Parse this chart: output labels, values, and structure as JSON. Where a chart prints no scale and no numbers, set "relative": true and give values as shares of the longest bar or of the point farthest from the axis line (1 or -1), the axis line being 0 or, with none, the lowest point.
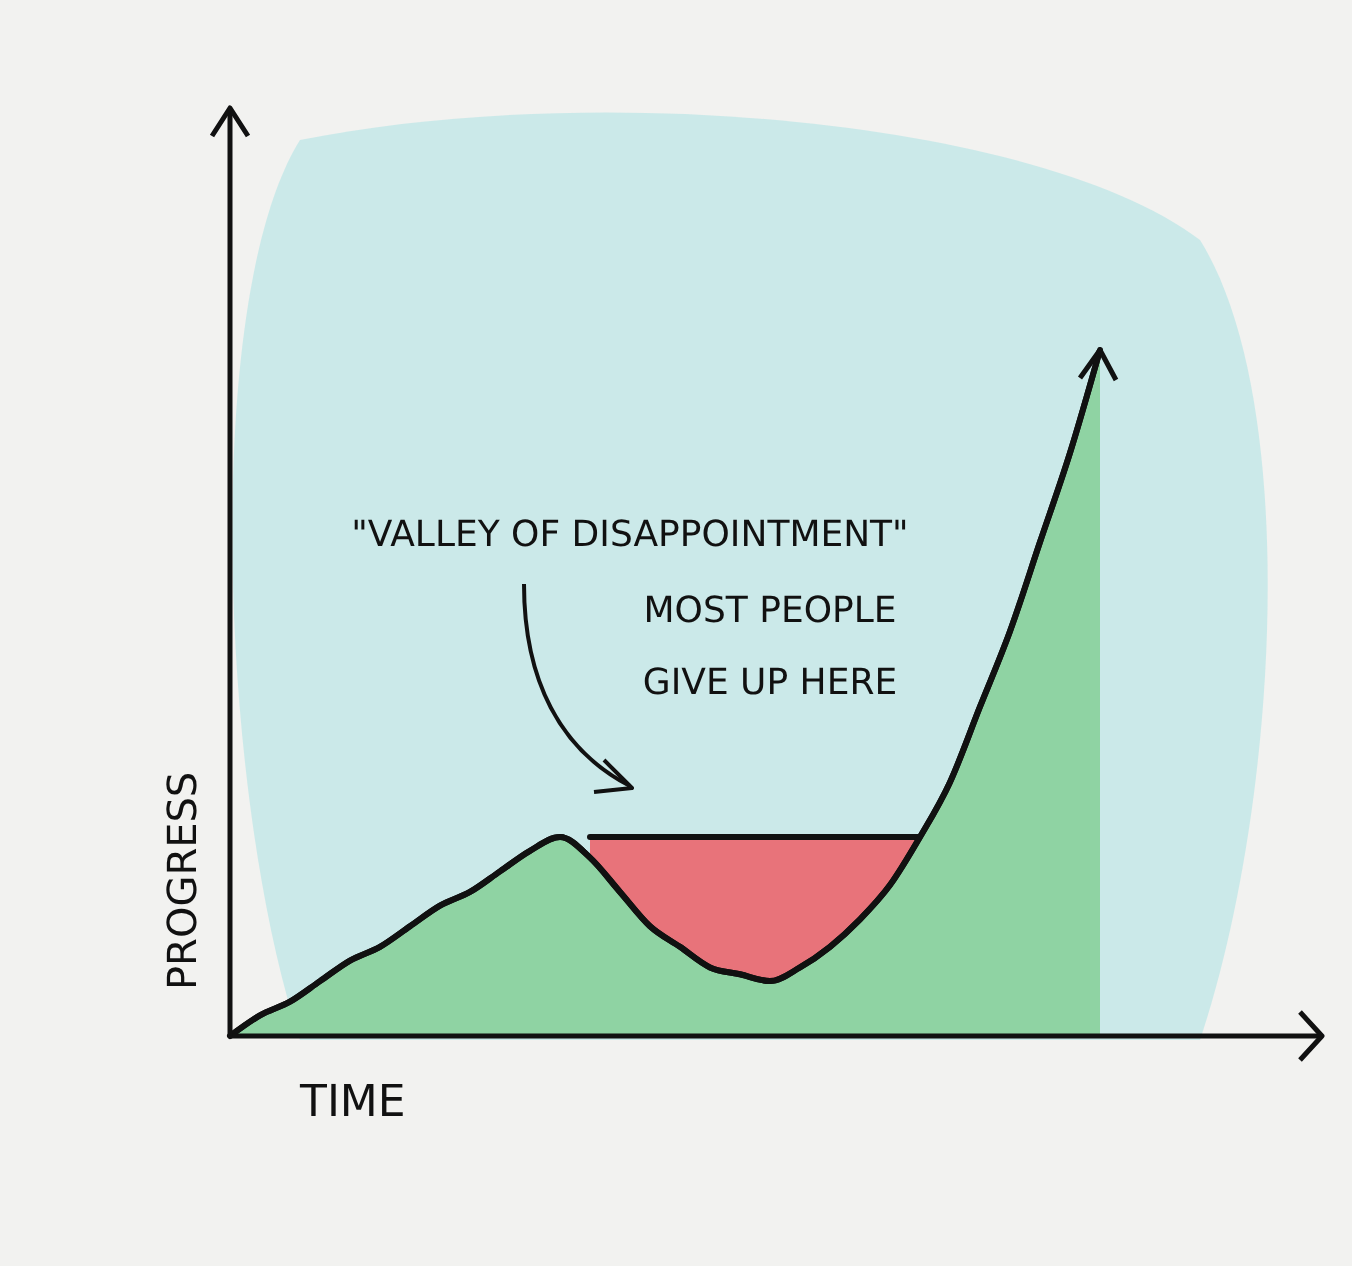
{
  "chart_data": {
    "type": "area",
    "relative": true,
    "xlabel": "TIME",
    "ylabel": "PROGRESS",
    "annotations": [
      "\"VALLEY OF DISAPPOINTMENT\"",
      "MOST PEOPLE\nGIVE UP HERE"
    ],
    "categories": [
      null,
      null,
      null,
      null,
      null,
      null,
      null,
      null,
      null,
      null,
      null,
      null,
      null,
      null,
      null,
      null,
      null,
      null,
      null,
      null,
      null,
      null,
      null,
      null,
      null,
      null,
      null,
      null,
      null,
      null
    ],
    "series": [
      {
        "color": "#8fd3a3",
        "values": [
          0,
          0.03,
          0.05,
          0.08,
          0.11,
          0.13,
          0.16,
          0.19,
          0.21,
          0.24,
          0.27,
          0.29,
          0.26,
          0.21,
          0.16,
          0.13,
          0.1,
          0.09,
          0.08,
          0.1,
          0.13,
          0.17,
          0.22,
          0.29,
          0.37,
          0.48,
          0.59,
          0.72,
          0.85,
          1
        ]
      },
      {
        "type": "area",
        "color": "#e8737a",
        "values": [
          null,
          null,
          null,
          null,
          null,
          null,
          null,
          null,
          null,
          null,
          null,
          null,
          0.29,
          0.29,
          0.29,
          0.29,
          0.29,
          0.29,
          0.29,
          0.29,
          0.29,
          0.29,
          0.29,
          0.29,
          null,
          null,
          null,
          null,
          null,
          null
        ]
      }
    ]
  }
}
